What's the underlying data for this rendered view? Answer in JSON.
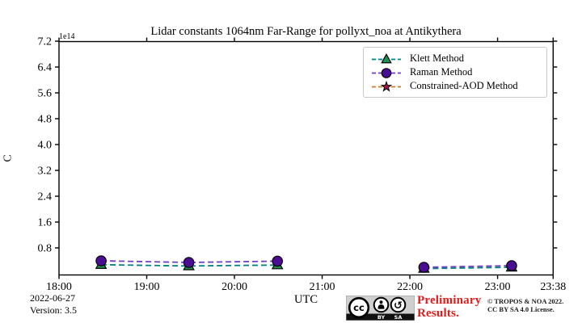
{
  "chart_data": {
    "type": "line",
    "title": "Lidar constants 1064nm Far-Range for pollyxt_noa at Antikythera",
    "xlabel": "UTC",
    "ylabel": "C",
    "y_offset_text": "1e14",
    "grid": false,
    "legend_position": "upper right",
    "xlim_hours": [
      18.0,
      23.6333
    ],
    "ylim_1e14": [
      -0.03,
      7.2
    ],
    "x_tick_labels": [
      "18:00",
      "19:00",
      "20:00",
      "21:00",
      "22:00",
      "23:00",
      "23:38"
    ],
    "x_tick_hours": [
      18,
      19,
      20,
      21,
      22,
      23,
      23.6333
    ],
    "y_ticks_1e14": [
      0.8,
      1.6,
      2.4,
      3.2,
      4.0,
      4.8,
      5.6,
      6.4,
      7.2
    ],
    "x_times": [
      "18:29",
      "19:29",
      "20:29",
      "22:09",
      "23:10"
    ],
    "x_hours": [
      18.48,
      19.48,
      20.49,
      22.16,
      23.16
    ],
    "series": [
      {
        "name": "Klett Method",
        "marker": "triangle",
        "line_style": "dashed",
        "line_color": "#008080",
        "marker_color": "#219150",
        "values_1e14": [
          0.28,
          0.24,
          0.27,
          0.16,
          0.2
        ],
        "segments": [
          [
            0,
            2
          ],
          [
            3,
            4
          ]
        ]
      },
      {
        "name": "Raman Method",
        "marker": "circle",
        "line_style": "dashed",
        "line_color": "#6f3fc4",
        "marker_color": "#4c0d95",
        "values_1e14": [
          0.4,
          0.35,
          0.39,
          0.2,
          0.25
        ],
        "segments": [
          [
            0,
            2
          ],
          [
            3,
            4
          ]
        ]
      },
      {
        "name": "Constrained-AOD Method",
        "marker": "star",
        "line_style": "dashed",
        "line_color": "#c77c33",
        "marker_color": "#9e1443",
        "values_1e14": [],
        "segments": []
      }
    ]
  },
  "annotations": {
    "date": "2022-06-27",
    "version": "Version: 3.5"
  },
  "footer": {
    "preliminary": {
      "line1": "Preliminary",
      "line2": "Results.",
      "color": "#e01b1b"
    },
    "license": {
      "line1": "© TROPOS & NOA 2022.",
      "line2": "CC BY SA 4.0 License."
    },
    "cc_badge": {
      "cc": "cc",
      "by": "BY",
      "sa": "SA"
    }
  }
}
